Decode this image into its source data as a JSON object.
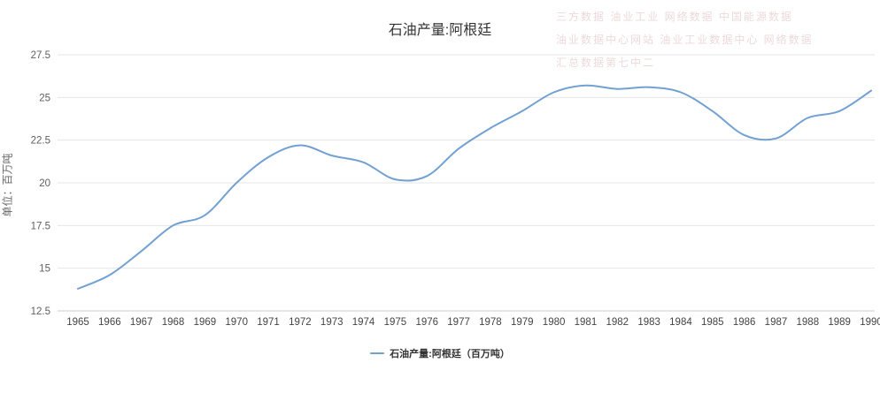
{
  "watermark": {
    "lines": [
      "三方数据 油业工业  网络数据        中国能源数据",
      "油业数据中心网站  油业工业数据中心 网络数据",
      "汇总数据第七中二"
    ]
  },
  "legend": {
    "label": "石油产量:阿根廷（百万吨）"
  },
  "colors": {
    "line": "#72a1d1",
    "grid": "#e6e6e6",
    "axis_label": "#606060",
    "title": "#333333"
  },
  "chart_data": {
    "type": "line",
    "title": "石油产量:阿根廷",
    "xlabel": "",
    "ylabel": "单位：百万吨",
    "categories": [
      1965,
      1966,
      1967,
      1968,
      1969,
      1970,
      1971,
      1972,
      1973,
      1974,
      1975,
      1976,
      1977,
      1978,
      1979,
      1980,
      1981,
      1982,
      1983,
      1984,
      1985,
      1986,
      1987,
      1988,
      1989,
      1990
    ],
    "series": [
      {
        "name": "石油产量:阿根廷（百万吨）",
        "values": [
          13.8,
          14.6,
          16.0,
          17.5,
          18.1,
          20.0,
          21.5,
          22.2,
          21.6,
          21.2,
          20.2,
          20.4,
          22.0,
          23.2,
          24.2,
          25.3,
          25.7,
          25.5,
          25.6,
          25.3,
          24.2,
          22.8,
          22.6,
          23.8,
          24.2,
          25.4
        ]
      }
    ],
    "ylim": [
      12.5,
      27.5
    ],
    "yticks": [
      12.5,
      15,
      17.5,
      20,
      22.5,
      25,
      27.5
    ],
    "grid": "horizontal",
    "legend_position": "bottom"
  }
}
